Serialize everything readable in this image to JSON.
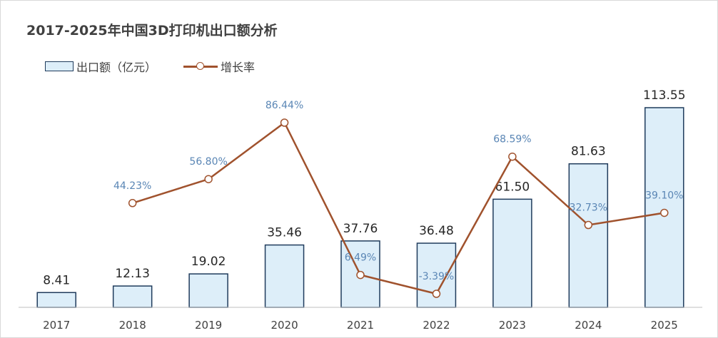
{
  "chart_data": {
    "type": "bar+line",
    "title": "2017-2025年中国3D打印机出口额分析",
    "categories": [
      "2017",
      "2018",
      "2019",
      "2020",
      "2021",
      "2022",
      "2023",
      "2024",
      "2025"
    ],
    "series": [
      {
        "name": "出口额（亿元）",
        "type": "bar",
        "values": [
          8.41,
          12.13,
          19.02,
          35.46,
          37.76,
          36.48,
          61.5,
          81.63,
          113.55
        ],
        "labels": [
          "8.41",
          "12.13",
          "19.02",
          "35.46",
          "37.76",
          "36.48",
          "61.50",
          "81.63",
          "113.55"
        ]
      },
      {
        "name": "增长率",
        "type": "line",
        "values": [
          null,
          44.23,
          56.8,
          86.44,
          6.49,
          -3.39,
          68.59,
          32.73,
          39.1
        ],
        "labels": [
          "",
          "44.23%",
          "56.80%",
          "86.44%",
          "6.49%",
          "-3.39%",
          "68.59%",
          "32.73%",
          "39.10%"
        ]
      }
    ],
    "legend_position": "top-left",
    "grid": false,
    "colors": {
      "bar_fill": "#ddeef9",
      "bar_stroke": "#1f3b5c",
      "line": "#a0522d",
      "line_label": "#5a86b5",
      "bar_label": "#262626",
      "axis_text": "#404040"
    }
  }
}
